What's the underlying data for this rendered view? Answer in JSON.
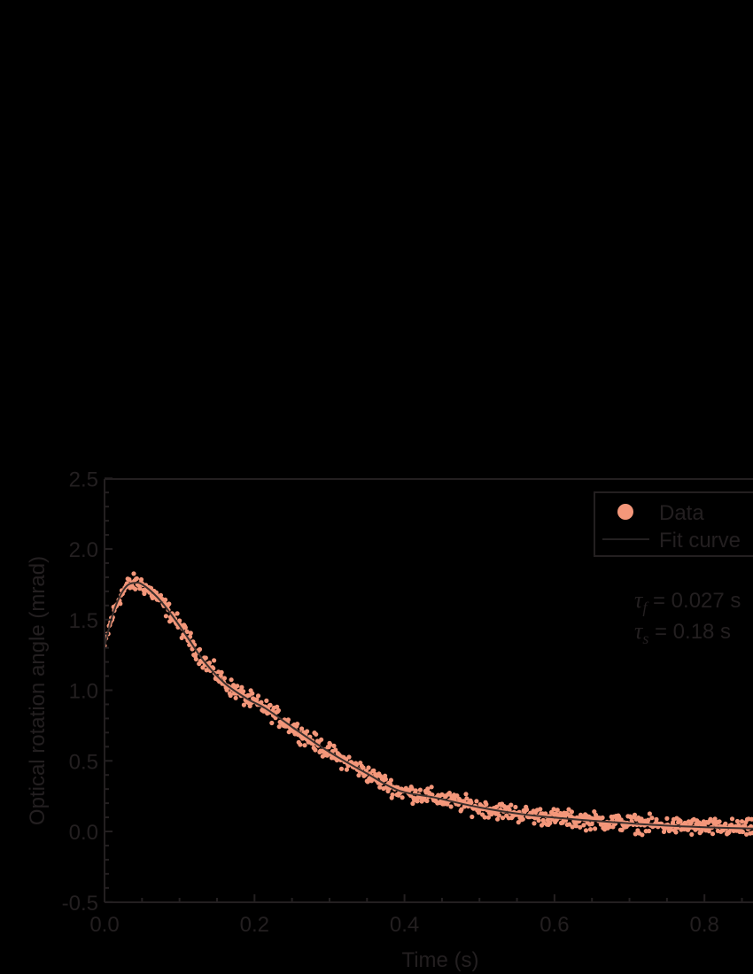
{
  "chart_data": {
    "type": "scatter",
    "title": "",
    "xlabel": "Time (s)",
    "ylabel": "Optical rotation angle (mrad)",
    "xlim": [
      0.0,
      0.865
    ],
    "ylim": [
      -0.5,
      2.5
    ],
    "x_ticks": [
      "0.0",
      "0.2",
      "0.4",
      "0.6",
      "0.8"
    ],
    "x_tick_values": [
      0.0,
      0.2,
      0.4,
      0.6,
      0.8
    ],
    "y_ticks": [
      "-0.5",
      "0.0",
      "0.5",
      "1.0",
      "1.5",
      "2.0",
      "2.5"
    ],
    "y_tick_values": [
      -0.5,
      0.0,
      0.5,
      1.0,
      1.5,
      2.0,
      2.5
    ],
    "grid": false,
    "legend_position": "upper right",
    "series": [
      {
        "name": "Data",
        "kind": "scatter",
        "color": "#f4977a",
        "note": "dense noisy samples (~1 ms spacing) scattered around fit curve, noise ~±0.04 mrad"
      },
      {
        "name": "Fit curve",
        "kind": "line",
        "color": "#4a3a36",
        "x": [
          0.0,
          0.01,
          0.02,
          0.03,
          0.04,
          0.05,
          0.07,
          0.09,
          0.11,
          0.132,
          0.16,
          0.19,
          0.215,
          0.25,
          0.28,
          0.31,
          0.35,
          0.392,
          0.44,
          0.5,
          0.56,
          0.617,
          0.68,
          0.735,
          0.8,
          0.865
        ],
        "y": [
          1.31,
          1.52,
          1.66,
          1.74,
          1.76,
          1.75,
          1.66,
          1.53,
          1.38,
          1.21,
          1.05,
          0.94,
          0.87,
          0.74,
          0.63,
          0.53,
          0.41,
          0.29,
          0.24,
          0.17,
          0.12,
          0.09,
          0.065,
          0.045,
          0.03,
          0.02
        ]
      }
    ],
    "annotations": [
      {
        "symbol": "τ",
        "subscript": "f",
        "text": " = 0.027 s"
      },
      {
        "symbol": "τ",
        "subscript": "s",
        "text": " = 0.18 s"
      }
    ]
  },
  "legend": {
    "items": [
      {
        "label": "Data",
        "marker": "circle",
        "color": "#f4977a"
      },
      {
        "label": "Fit curve",
        "marker": "line",
        "color": "#231f20"
      }
    ]
  },
  "colors": {
    "background": "#000000",
    "axis": "#231f20",
    "text": "#231f20",
    "data": "#f4977a",
    "fit": "#3d302d"
  }
}
